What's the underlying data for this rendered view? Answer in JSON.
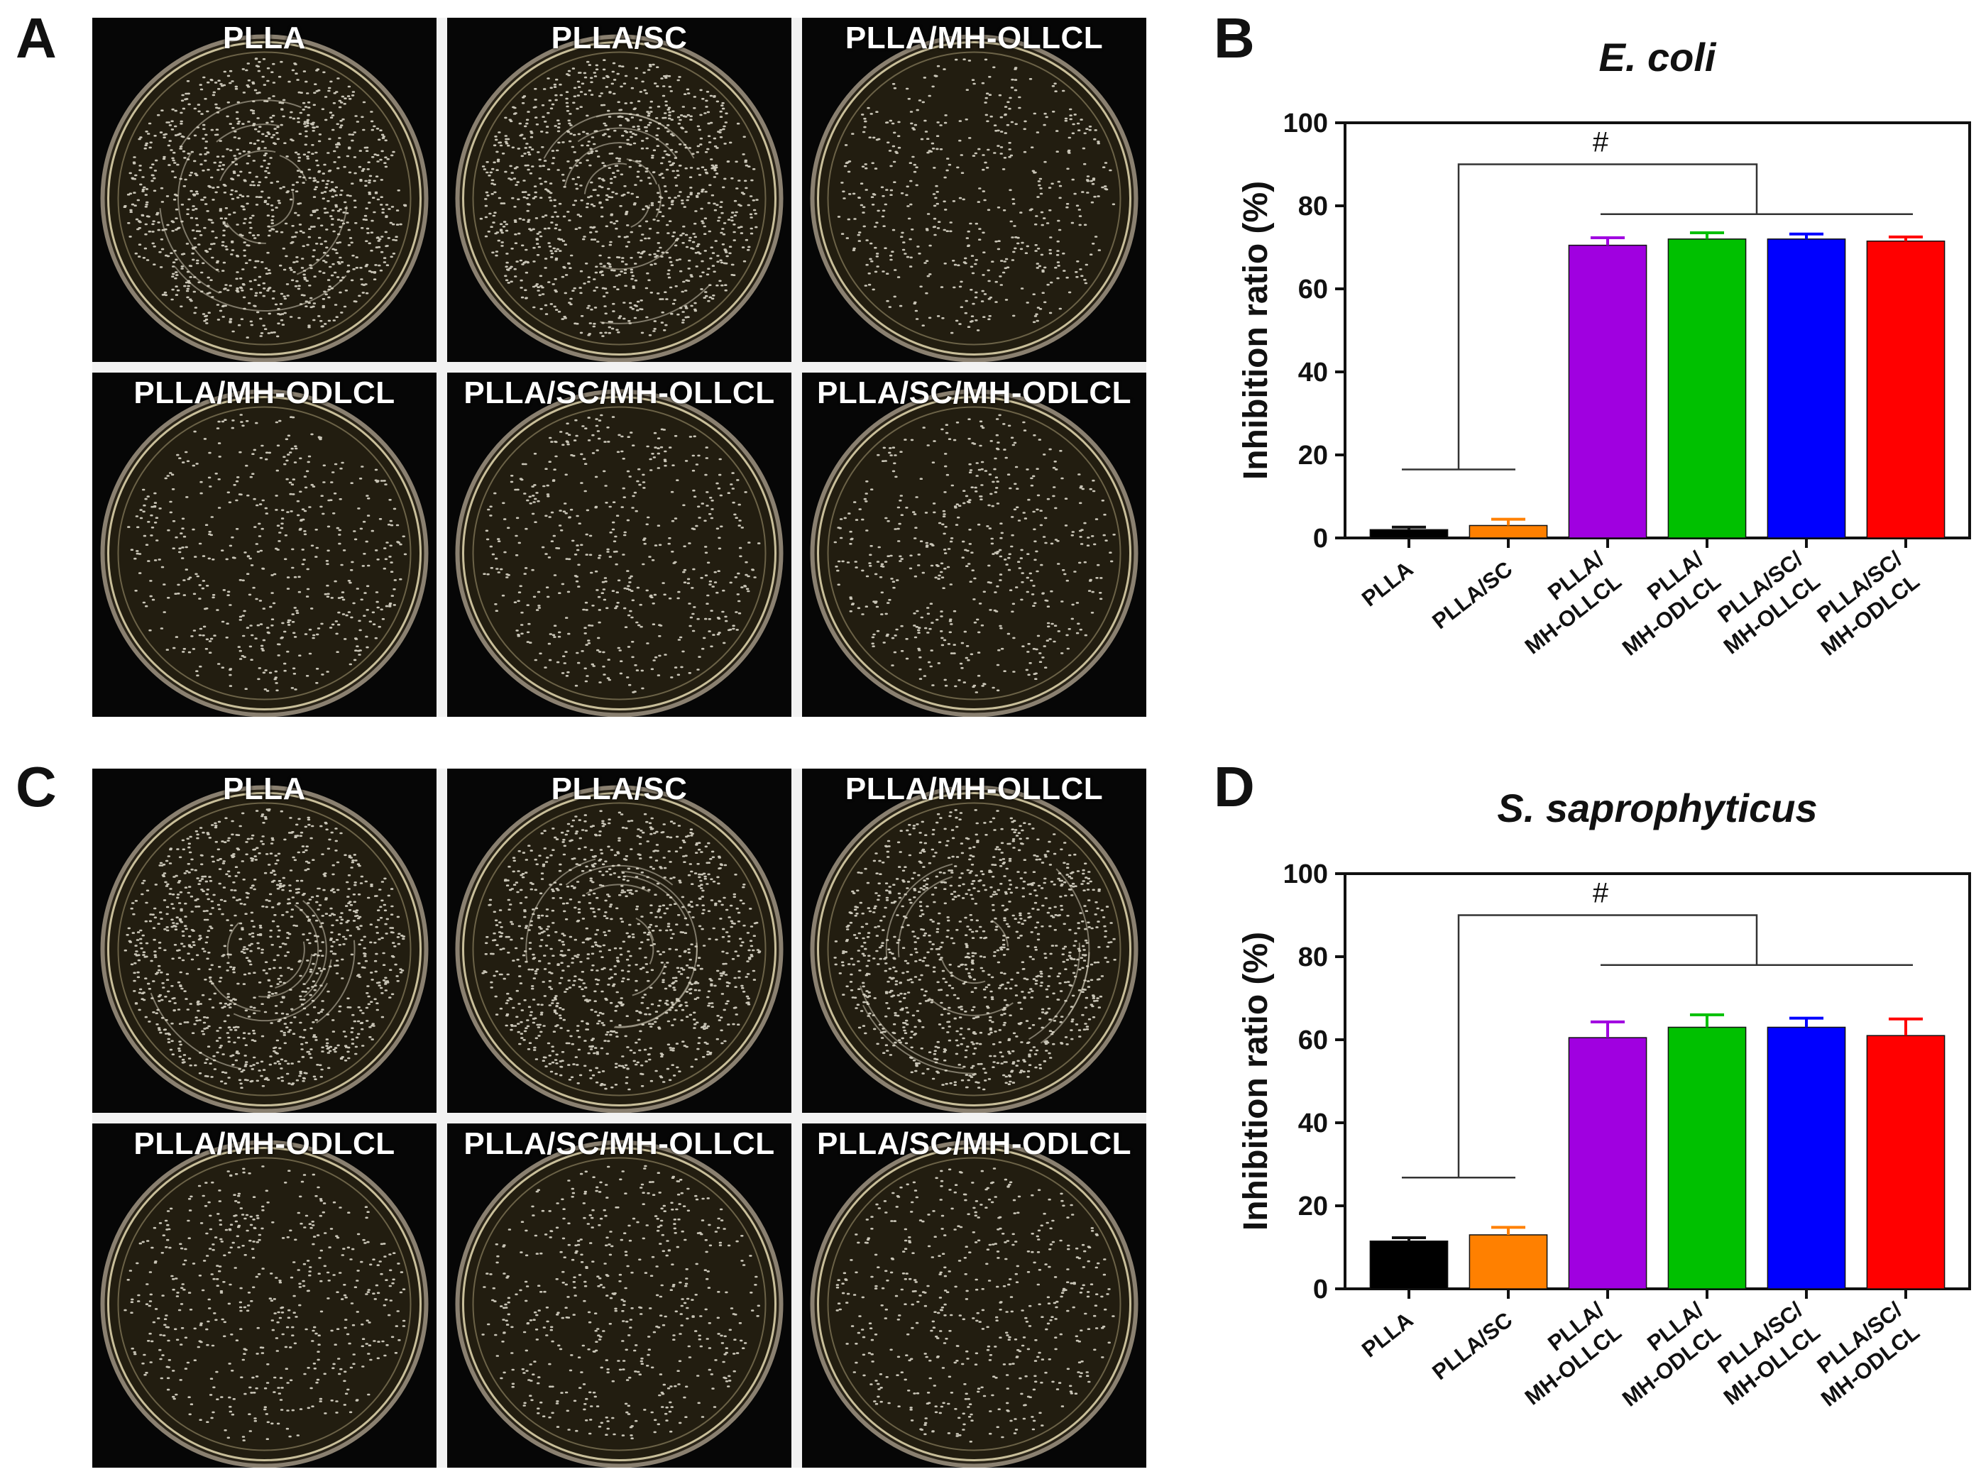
{
  "panels": {
    "A": "A",
    "B": "B",
    "C": "C",
    "D": "D"
  },
  "plate_grids": [
    {
      "panel": "A",
      "labels": [
        "PLLA",
        "PLLA/SC",
        "PLLA/MH-OLLCL",
        "PLLA/MH-ODLCL",
        "PLLA/SC/MH-OLLCL",
        "PLLA/SC/MH-ODLCL"
      ]
    },
    {
      "panel": "C",
      "labels": [
        "PLLA",
        "PLLA/SC",
        "PLLA/MH-OLLCL",
        "PLLA/MH-ODLCL",
        "PLLA/SC/MH-OLLCL",
        "PLLA/SC/MH-ODLCL"
      ]
    }
  ],
  "chart_data": [
    {
      "type": "bar",
      "panel": "B",
      "title": "E. coli",
      "ylabel": "Inhibition ratio (%)",
      "xlabel": "",
      "ylim": [
        0,
        100
      ],
      "yticks": [
        "0",
        "20",
        "40",
        "60",
        "80",
        "100"
      ],
      "categories": [
        [
          "PLLA"
        ],
        [
          "PLLA/SC"
        ],
        [
          "PLLA/",
          "MH-OLLCL"
        ],
        [
          "PLLA/",
          "MH-ODLCL"
        ],
        [
          "PLLA/SC/",
          "MH-OLLCL"
        ],
        [
          "PLLA/SC/",
          "MH-ODLCL"
        ]
      ],
      "values": [
        2,
        3,
        70.5,
        72,
        72,
        71.5
      ],
      "errors": [
        0.6,
        1.5,
        1.8,
        1.5,
        1.2,
        1.0
      ],
      "colors": [
        "#000000",
        "#ff8000",
        "#a000e0",
        "#00c000",
        "#0000ff",
        "#ff0000"
      ],
      "significance": "#",
      "grid": false
    },
    {
      "type": "bar",
      "panel": "D",
      "title": "S. saprophyticus",
      "ylabel": "Inhibition ratio (%)",
      "xlabel": "",
      "ylim": [
        0,
        100
      ],
      "yticks": [
        "0",
        "20",
        "40",
        "60",
        "80",
        "100"
      ],
      "categories": [
        [
          "PLLA"
        ],
        [
          "PLLA/SC"
        ],
        [
          "PLLA/",
          "MH-OLLCL"
        ],
        [
          "PLLA/",
          "MH-ODLCL"
        ],
        [
          "PLLA/SC/",
          "MH-OLLCL"
        ],
        [
          "PLLA/SC/",
          "MH-ODLCL"
        ]
      ],
      "values": [
        11.5,
        13,
        60.5,
        63,
        63,
        61
      ],
      "errors": [
        0.8,
        1.8,
        3.8,
        3.0,
        2.2,
        4.0
      ],
      "colors": [
        "#000000",
        "#ff8000",
        "#a000e0",
        "#00c000",
        "#0000ff",
        "#ff0000"
      ],
      "significance": "#",
      "grid": false
    }
  ]
}
